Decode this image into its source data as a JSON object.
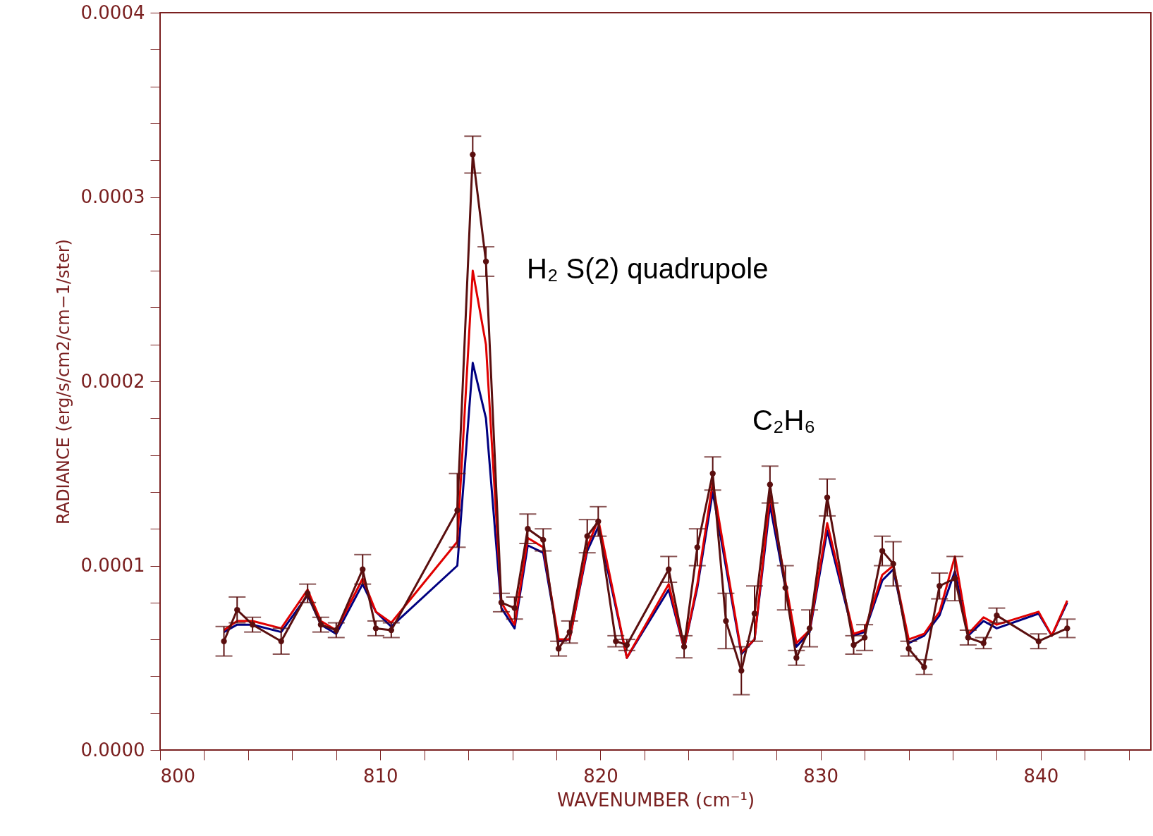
{
  "chart_data": {
    "type": "line",
    "xlabel": "WAVENUMBER (cm⁻¹)",
    "ylabel": "RADIANCE (erg/s/cm2/cm−1/ster)",
    "annotations": [
      "H₂ S(2) quadrupole",
      "C₂H₆"
    ],
    "xlim": [
      800,
      845
    ],
    "ylim": [
      0,
      0.0004
    ],
    "xticks": [
      800,
      {
        "value": 802,
        "label": null
      },
      {
        "value": 804,
        "label": null
      },
      {
        "value": 806,
        "label": null
      },
      {
        "value": 808,
        "label": null
      },
      810,
      {
        "value": 812,
        "label": null
      },
      {
        "value": 814,
        "label": null
      },
      {
        "value": 816,
        "label": null
      },
      {
        "value": 818,
        "label": null
      },
      820,
      {
        "value": 822,
        "label": null
      },
      {
        "value": 824,
        "label": null
      },
      {
        "value": 826,
        "label": null
      },
      {
        "value": 828,
        "label": null
      },
      830,
      {
        "value": 832,
        "label": null
      },
      {
        "value": 834,
        "label": null
      },
      {
        "value": 836,
        "label": null
      },
      {
        "value": 838,
        "label": null
      },
      840,
      {
        "value": 842,
        "label": null
      },
      {
        "value": 844,
        "label": null
      }
    ],
    "yticks": [
      {
        "value": 0,
        "label": "0.0000"
      },
      {
        "value": 2e-05,
        "label": null
      },
      {
        "value": 4e-05,
        "label": null
      },
      {
        "value": 6e-05,
        "label": null
      },
      {
        "value": 8e-05,
        "label": null
      },
      {
        "value": 0.0001,
        "label": "0.0001"
      },
      {
        "value": 0.00012,
        "label": null
      },
      {
        "value": 0.00014,
        "label": null
      },
      {
        "value": 0.00016,
        "label": null
      },
      {
        "value": 0.00018,
        "label": null
      },
      {
        "value": 0.0002,
        "label": "0.0002"
      },
      {
        "value": 0.00022,
        "label": null
      },
      {
        "value": 0.00024,
        "label": null
      },
      {
        "value": 0.00026,
        "label": null
      },
      {
        "value": 0.00028,
        "label": null
      },
      {
        "value": 0.0003,
        "label": "0.0003"
      },
      {
        "value": 0.00032,
        "label": null
      },
      {
        "value": 0.00034,
        "label": null
      },
      {
        "value": 0.00036,
        "label": null
      },
      {
        "value": 0.00038,
        "label": null
      },
      {
        "value": 0.0004,
        "label": "0.0004"
      }
    ],
    "grid": false,
    "line_style": "solid",
    "series": [
      {
        "color": "#000080",
        "marker": "none",
        "x": [
          802.9,
          803.5,
          804.2,
          805.5,
          806.7,
          807.3,
          808.0,
          809.2,
          809.8,
          810.5,
          813.5,
          814.2,
          814.8,
          815.5,
          816.1,
          816.7,
          817.4,
          818.1,
          818.6,
          819.4,
          819.9,
          821.2,
          823.1,
          823.8,
          824.4,
          825.1,
          826.4,
          827.0,
          827.7,
          828.9,
          829.5,
          830.3,
          831.5,
          832.0,
          832.8,
          833.3,
          834.0,
          834.7,
          835.4,
          836.1,
          836.7,
          837.4,
          838.0,
          839.9,
          840.5,
          841.2
        ],
        "values": [
          6.4e-05,
          6.8e-05,
          6.8e-05,
          6.4e-05,
          8.4e-05,
          6.8e-05,
          6.3e-05,
          9e-05,
          7.5e-05,
          6.7e-05,
          0.0001,
          0.00021,
          0.00018,
          7.7e-05,
          6.6e-05,
          0.000111,
          0.000107,
          5.9e-05,
          6e-05,
          0.000108,
          0.000121,
          5e-05,
          8.7e-05,
          5.5e-05,
          8.8e-05,
          0.00014,
          5.2e-05,
          6e-05,
          0.000133,
          5.6e-05,
          6.4e-05,
          0.000119,
          6.2e-05,
          6.4e-05,
          9.2e-05,
          9.8e-05,
          5.8e-05,
          6.2e-05,
          7.3e-05,
          9.7e-05,
          6.2e-05,
          7e-05,
          6.6e-05,
          7.4e-05,
          6.2e-05,
          8e-05
        ]
      },
      {
        "color": "#e00000",
        "marker": "none",
        "x": [
          802.9,
          803.5,
          804.2,
          805.5,
          806.7,
          807.3,
          808.0,
          809.2,
          809.8,
          810.5,
          813.5,
          814.2,
          814.8,
          815.5,
          816.1,
          816.7,
          817.4,
          818.1,
          818.6,
          819.4,
          819.9,
          821.2,
          823.1,
          823.8,
          824.4,
          825.1,
          826.4,
          827.0,
          827.7,
          828.9,
          829.5,
          830.3,
          831.5,
          832.0,
          832.8,
          833.3,
          834.0,
          834.7,
          835.4,
          836.1,
          836.7,
          837.4,
          838.0,
          839.9,
          840.5,
          841.2
        ],
        "values": [
          6.5e-05,
          7e-05,
          7e-05,
          6.6e-05,
          8.7e-05,
          7e-05,
          6.5e-05,
          9.3e-05,
          7.5e-05,
          6.9e-05,
          0.000113,
          0.00026,
          0.00022,
          8e-05,
          6.8e-05,
          0.000115,
          0.00011,
          6e-05,
          6e-05,
          0.00011,
          0.000125,
          5e-05,
          9e-05,
          5.5e-05,
          9e-05,
          0.000145,
          5.3e-05,
          6e-05,
          0.000138,
          5.8e-05,
          6.5e-05,
          0.000123,
          6.3e-05,
          6.5e-05,
          9.5e-05,
          0.0001,
          6e-05,
          6.3e-05,
          7.5e-05,
          0.000105,
          6.3e-05,
          7.2e-05,
          6.8e-05,
          7.5e-05,
          6.2e-05,
          8.1e-05
        ]
      },
      {
        "color": "#5a0f0f",
        "marker": "circle",
        "x": [
          802.9,
          803.5,
          804.2,
          805.5,
          806.7,
          807.3,
          808.0,
          809.2,
          809.8,
          810.5,
          813.5,
          814.2,
          814.8,
          815.5,
          816.1,
          816.7,
          817.4,
          818.1,
          818.6,
          819.4,
          819.9,
          820.7,
          821.2,
          823.1,
          823.8,
          824.4,
          825.1,
          825.7,
          826.4,
          827.0,
          827.7,
          828.4,
          828.9,
          829.5,
          830.3,
          831.5,
          832.0,
          832.8,
          833.3,
          834.0,
          834.7,
          835.4,
          836.1,
          836.7,
          837.4,
          838.0,
          839.9,
          841.2
        ],
        "values": [
          5.9e-05,
          7.6e-05,
          6.8e-05,
          5.9e-05,
          8.5e-05,
          6.8e-05,
          6.5e-05,
          9.8e-05,
          6.6e-05,
          6.5e-05,
          0.00013,
          0.000323,
          0.000265,
          8e-05,
          7.7e-05,
          0.00012,
          0.000114,
          5.5e-05,
          6.4e-05,
          0.000116,
          0.000124,
          5.9e-05,
          5.7e-05,
          9.8e-05,
          5.6e-05,
          0.00011,
          0.00015,
          7e-05,
          4.3e-05,
          7.4e-05,
          0.000144,
          8.8e-05,
          5e-05,
          6.6e-05,
          0.000137,
          5.7e-05,
          6.1e-05,
          0.000108,
          0.000101,
          5.5e-05,
          4.5e-05,
          8.9e-05,
          9.3e-05,
          6.1e-05,
          5.8e-05,
          7.3e-05,
          5.9e-05,
          6.6e-05
        ],
        "errors": [
          8e-06,
          7e-06,
          4e-06,
          7e-06,
          5e-06,
          4e-06,
          4e-06,
          8e-06,
          4e-06,
          4e-06,
          2e-05,
          1e-05,
          8e-06,
          5e-06,
          6e-06,
          8e-06,
          6e-06,
          4e-06,
          6e-06,
          9e-06,
          8e-06,
          3e-06,
          3e-06,
          7e-06,
          6e-06,
          1e-05,
          9e-06,
          1.5e-05,
          1.3e-05,
          1.5e-05,
          1e-05,
          1.2e-05,
          4e-06,
          1e-05,
          1e-05,
          5e-06,
          7e-06,
          8e-06,
          1.2e-05,
          4e-06,
          4e-06,
          7e-06,
          1.2e-05,
          4e-06,
          3e-06,
          4e-06,
          4e-06,
          5e-06
        ]
      }
    ]
  }
}
